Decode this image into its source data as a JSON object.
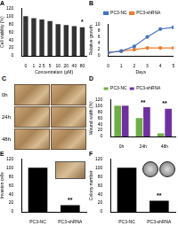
{
  "chart_data": [
    {
      "type": "bar",
      "title": "A",
      "categories": [
        "0",
        "1",
        "2.5",
        "5",
        "10",
        "20",
        "40",
        "80"
      ],
      "values": [
        100,
        95,
        92,
        88,
        80,
        78,
        75,
        72
      ],
      "color": "#333333",
      "ylabel": "Cell viability (%)",
      "xlabel": "Concentration (μM)",
      "ylim": [
        0,
        120
      ],
      "yticks": [
        0,
        20,
        40,
        60,
        80,
        100,
        120
      ],
      "annotations": [
        {
          "x": "80",
          "text": "*"
        }
      ]
    },
    {
      "type": "line",
      "title": "B",
      "x": [
        0,
        1,
        2,
        3,
        4,
        5
      ],
      "series": [
        {
          "name": "PC3-NC",
          "color": "#4472c4",
          "values": [
            1,
            1.5,
            3,
            6,
            8.5,
            9
          ],
          "marker": "circle"
        },
        {
          "name": "PC3-shRNA",
          "color": "#ed7d31",
          "values": [
            1,
            1.5,
            2,
            2.5,
            2.5,
            2.5
          ],
          "marker": "circle"
        }
      ],
      "xlabel": "Days",
      "ylabel": "Relative growth",
      "xlim": [
        0,
        5
      ],
      "xticks": [
        0,
        1,
        2,
        3,
        4,
        5
      ],
      "ylim": [
        0,
        10
      ],
      "yticks": [
        0,
        2,
        4,
        6,
        8,
        10
      ],
      "legend": "top"
    },
    {
      "type": "bar",
      "title": "D",
      "categories": [
        "0h",
        "24h",
        "48h"
      ],
      "series": [
        {
          "name": "PC3-NC",
          "color": "#70ad47",
          "values": [
            100,
            60,
            10
          ]
        },
        {
          "name": "PC3-shRNA",
          "color": "#7030a0",
          "values": [
            100,
            95,
            90
          ]
        }
      ],
      "ylabel": "Wound width (%)",
      "ylim": [
        0,
        120
      ],
      "yticks": [
        0,
        20,
        40,
        60,
        80,
        100,
        120
      ],
      "legend": "top",
      "annotations": [
        {
          "x": "24h",
          "text": "**"
        },
        {
          "x": "48h",
          "text": "**"
        }
      ]
    },
    {
      "type": "bar",
      "title": "E",
      "categories": [
        "PC3-NC",
        "PC3-shRNA"
      ],
      "values": [
        100,
        15
      ],
      "color": "#000000",
      "ylabel": "Invasion cells",
      "ylim": [
        0,
        120
      ],
      "yticks": [
        0,
        20,
        40,
        60,
        80,
        100,
        120
      ],
      "annotations": [
        {
          "x": "PC3-shRNA",
          "text": "**"
        }
      ]
    },
    {
      "type": "bar",
      "title": "F",
      "categories": [
        "PC3-NC",
        "PC3-shRNA"
      ],
      "values": [
        100,
        25
      ],
      "color": "#000000",
      "ylabel": "Colony number",
      "ylim": [
        0,
        120
      ],
      "yticks": [
        0,
        20,
        40,
        60,
        80,
        100,
        120
      ],
      "annotations": [
        {
          "x": "PC3-shRNA",
          "text": "**"
        }
      ]
    }
  ],
  "images": {
    "title": "C",
    "rows": [
      "0h",
      "24h",
      "48h"
    ]
  }
}
